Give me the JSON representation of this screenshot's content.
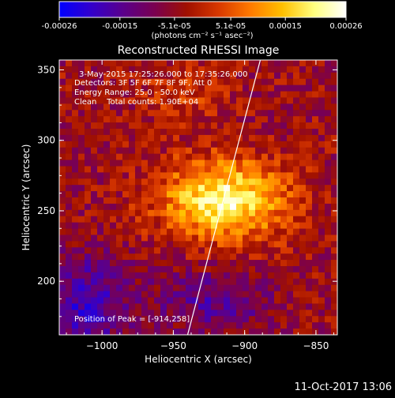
{
  "colorbar": {
    "tick_labels": [
      "-0.00026",
      "-0.00015",
      "-5.1e-05",
      "5.1e-05",
      "0.00015",
      "0.00026"
    ],
    "tick_values": [
      -0.00026,
      -0.00015,
      -5.1e-05,
      5.1e-05,
      0.00015,
      0.00026
    ],
    "range": [
      -0.00026,
      0.00026
    ],
    "units_label": "(photons cm⁻² s⁻¹ asec⁻²)",
    "stops": [
      "#0000ff",
      "#3300cc",
      "#5a008c",
      "#7a0050",
      "#a01000",
      "#d83800",
      "#ff7a00",
      "#ffc000",
      "#ffff80",
      "#ffffff"
    ]
  },
  "chart_data": {
    "type": "heatmap",
    "title": "Reconstructed RHESSI Image",
    "xlabel": "Heliocentric X (arcsec)",
    "ylabel": "Heliocentric Y (arcsec)",
    "xlim": [
      -1030,
      -835
    ],
    "ylim": [
      162,
      357
    ],
    "x_ticks": [
      -1000,
      -950,
      -900,
      -850
    ],
    "x_tick_labels": [
      "−1000",
      "−950",
      "−900",
      "−850"
    ],
    "y_ticks": [
      200,
      250,
      300,
      350
    ],
    "y_tick_labels": [
      "200",
      "250",
      "300",
      "350"
    ],
    "peak": [
      -914,
      258
    ],
    "limb_line": [
      [
        -940,
        162
      ],
      [
        -889,
        357
      ]
    ],
    "annotations": [
      "3-May-2015 17:25:26.000 to 17:35:26.000",
      "Detectors: 3F 5F 6F 7F 8F 9F, Att 0",
      "Energy Range: 25.0 - 50.0 keV",
      "Clean    Total counts: 1.90E+04"
    ],
    "peak_label": "Position of Peak = [-914,258]"
  },
  "footer": {
    "date": "11-Oct-2017 13:06"
  }
}
